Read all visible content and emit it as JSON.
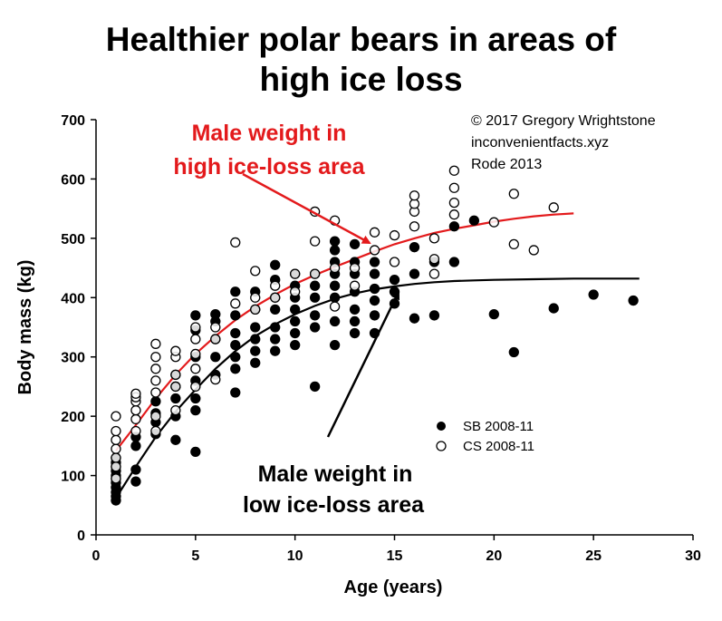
{
  "title_line1": "Healthier polar bears in areas of",
  "title_line2": "high ice loss",
  "credits": [
    "© 2017 Gregory Wrightstone",
    "inconvenientfacts.xyz",
    "Rode 2013"
  ],
  "annotations": {
    "red_line1": "Male weight in",
    "red_line2": "high ice-loss area",
    "black_line1": "Male weight in",
    "black_line2": "low ice-loss area"
  },
  "colors": {
    "red": "#e31a1c",
    "black": "#000000"
  },
  "chart_data": {
    "type": "scatter",
    "xlabel": "Age (years)",
    "ylabel": "Body mass (kg)",
    "xlim": [
      0,
      30
    ],
    "ylim": [
      0,
      700
    ],
    "xticks": [
      0,
      5,
      10,
      15,
      20,
      25,
      30
    ],
    "yticks": [
      0,
      100,
      200,
      300,
      400,
      500,
      600,
      700
    ],
    "legend": {
      "position": "lower-right",
      "entries": [
        "SB 2008-11",
        "CS 2008-11"
      ]
    },
    "series": [
      {
        "name": "SB 2008-11",
        "marker": "filled-circle",
        "points": [
          [
            1,
            58
          ],
          [
            1,
            65
          ],
          [
            1,
            72
          ],
          [
            1,
            80
          ],
          [
            1,
            88
          ],
          [
            1,
            95
          ],
          [
            1,
            100
          ],
          [
            1,
            108
          ],
          [
            1,
            115
          ],
          [
            1,
            122
          ],
          [
            1,
            130
          ],
          [
            2,
            90
          ],
          [
            2,
            110
          ],
          [
            2,
            150
          ],
          [
            2,
            165
          ],
          [
            3,
            170
          ],
          [
            3,
            190
          ],
          [
            3,
            205
          ],
          [
            3,
            225
          ],
          [
            4,
            160
          ],
          [
            4,
            200
          ],
          [
            4,
            230
          ],
          [
            4,
            250
          ],
          [
            4,
            270
          ],
          [
            5,
            140
          ],
          [
            5,
            210
          ],
          [
            5,
            230
          ],
          [
            5,
            260
          ],
          [
            5,
            300
          ],
          [
            5,
            345
          ],
          [
            5,
            370
          ],
          [
            6,
            270
          ],
          [
            6,
            300
          ],
          [
            6,
            330
          ],
          [
            6,
            360
          ],
          [
            6,
            372
          ],
          [
            7,
            240
          ],
          [
            7,
            280
          ],
          [
            7,
            300
          ],
          [
            7,
            320
          ],
          [
            7,
            340
          ],
          [
            7,
            370
          ],
          [
            7,
            410
          ],
          [
            8,
            290
          ],
          [
            8,
            310
          ],
          [
            8,
            330
          ],
          [
            8,
            350
          ],
          [
            8,
            380
          ],
          [
            8,
            410
          ],
          [
            9,
            310
          ],
          [
            9,
            330
          ],
          [
            9,
            350
          ],
          [
            9,
            380
          ],
          [
            9,
            400
          ],
          [
            9,
            430
          ],
          [
            9,
            455
          ],
          [
            10,
            320
          ],
          [
            10,
            340
          ],
          [
            10,
            360
          ],
          [
            10,
            380
          ],
          [
            10,
            400
          ],
          [
            10,
            420
          ],
          [
            10,
            440
          ],
          [
            11,
            250
          ],
          [
            11,
            350
          ],
          [
            11,
            370
          ],
          [
            11,
            400
          ],
          [
            11,
            420
          ],
          [
            11,
            440
          ],
          [
            12,
            320
          ],
          [
            12,
            360
          ],
          [
            12,
            400
          ],
          [
            12,
            420
          ],
          [
            12,
            440
          ],
          [
            12,
            460
          ],
          [
            12,
            480
          ],
          [
            12,
            495
          ],
          [
            13,
            340
          ],
          [
            13,
            360
          ],
          [
            13,
            380
          ],
          [
            13,
            410
          ],
          [
            13,
            440
          ],
          [
            13,
            460
          ],
          [
            13,
            490
          ],
          [
            14,
            340
          ],
          [
            14,
            370
          ],
          [
            14,
            395
          ],
          [
            14,
            415
          ],
          [
            14,
            440
          ],
          [
            14,
            460
          ],
          [
            15,
            390
          ],
          [
            15,
            410
          ],
          [
            15,
            430
          ],
          [
            16,
            365
          ],
          [
            16,
            440
          ],
          [
            16,
            485
          ],
          [
            17,
            370
          ],
          [
            17,
            460
          ],
          [
            18,
            460
          ],
          [
            18,
            520
          ],
          [
            19,
            530
          ],
          [
            20,
            372
          ],
          [
            21,
            308
          ],
          [
            23,
            382
          ],
          [
            25,
            405
          ],
          [
            27,
            395
          ]
        ]
      },
      {
        "name": "CS 2008-11",
        "marker": "open-circle",
        "points": [
          [
            1,
            95
          ],
          [
            1,
            115
          ],
          [
            1,
            130
          ],
          [
            1,
            145
          ],
          [
            1,
            160
          ],
          [
            1,
            175
          ],
          [
            1,
            200
          ],
          [
            2,
            175
          ],
          [
            2,
            195
          ],
          [
            2,
            210
          ],
          [
            2,
            225
          ],
          [
            2,
            232
          ],
          [
            2,
            238
          ],
          [
            3,
            175
          ],
          [
            3,
            200
          ],
          [
            3,
            240
          ],
          [
            3,
            260
          ],
          [
            3,
            280
          ],
          [
            3,
            300
          ],
          [
            3,
            322
          ],
          [
            4,
            210
          ],
          [
            4,
            250
          ],
          [
            4,
            270
          ],
          [
            4,
            300
          ],
          [
            4,
            310
          ],
          [
            5,
            250
          ],
          [
            5,
            280
          ],
          [
            5,
            305
          ],
          [
            5,
            330
          ],
          [
            5,
            350
          ],
          [
            6,
            262
          ],
          [
            6,
            330
          ],
          [
            6,
            350
          ],
          [
            7,
            390
          ],
          [
            7,
            493
          ],
          [
            8,
            380
          ],
          [
            8,
            400
          ],
          [
            8,
            445
          ],
          [
            9,
            400
          ],
          [
            9,
            420
          ],
          [
            10,
            410
          ],
          [
            10,
            440
          ],
          [
            11,
            440
          ],
          [
            11,
            495
          ],
          [
            11,
            545
          ],
          [
            12,
            385
          ],
          [
            12,
            450
          ],
          [
            12,
            530
          ],
          [
            13,
            420
          ],
          [
            13,
            450
          ],
          [
            14,
            480
          ],
          [
            14,
            510
          ],
          [
            15,
            460
          ],
          [
            15,
            505
          ],
          [
            16,
            520
          ],
          [
            16,
            545
          ],
          [
            16,
            558
          ],
          [
            16,
            572
          ],
          [
            17,
            440
          ],
          [
            17,
            465
          ],
          [
            17,
            500
          ],
          [
            18,
            540
          ],
          [
            18,
            560
          ],
          [
            18,
            585
          ],
          [
            18,
            614
          ],
          [
            20,
            527
          ],
          [
            21,
            490
          ],
          [
            21,
            575
          ],
          [
            22,
            480
          ],
          [
            23,
            552
          ]
        ]
      }
    ],
    "curves": [
      {
        "name": "Male weight in high ice-loss area",
        "color": "#e31a1c",
        "points": [
          [
            1,
            142
          ],
          [
            2,
            185
          ],
          [
            3,
            230
          ],
          [
            4,
            270
          ],
          [
            5,
            305
          ],
          [
            6,
            335
          ],
          [
            7,
            362
          ],
          [
            8,
            385
          ],
          [
            9,
            405
          ],
          [
            10,
            423
          ],
          [
            11,
            438
          ],
          [
            12,
            452
          ],
          [
            13,
            465
          ],
          [
            14,
            478
          ],
          [
            15,
            490
          ],
          [
            16,
            500
          ],
          [
            17,
            509
          ],
          [
            18,
            516
          ],
          [
            19,
            522
          ],
          [
            20,
            528
          ],
          [
            21,
            533
          ],
          [
            22,
            537
          ],
          [
            23,
            540
          ],
          [
            24,
            542
          ]
        ]
      },
      {
        "name": "Male weight in low ice-loss area",
        "color": "#000000",
        "points": [
          [
            1,
            62
          ],
          [
            2,
            115
          ],
          [
            3,
            165
          ],
          [
            4,
            208
          ],
          [
            5,
            245
          ],
          [
            6,
            280
          ],
          [
            7,
            310
          ],
          [
            8,
            335
          ],
          [
            9,
            355
          ],
          [
            10,
            372
          ],
          [
            11,
            386
          ],
          [
            12,
            398
          ],
          [
            13,
            407
          ],
          [
            14,
            414
          ],
          [
            15,
            419
          ],
          [
            16,
            423
          ],
          [
            17,
            426
          ],
          [
            18,
            428
          ],
          [
            19,
            429
          ],
          [
            20,
            430
          ],
          [
            22,
            431
          ],
          [
            24,
            432
          ],
          [
            26,
            432
          ],
          [
            27.3,
            432
          ]
        ]
      }
    ]
  }
}
